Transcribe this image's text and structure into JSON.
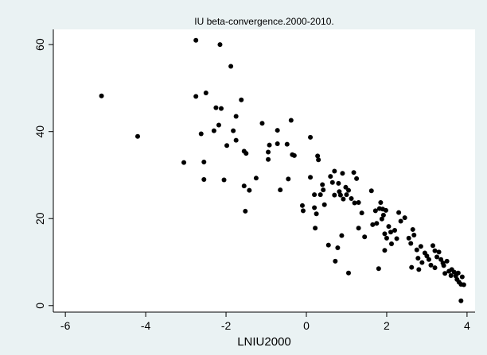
{
  "chart_data": {
    "type": "scatter",
    "title": "IU beta-convergence.2000-2010.",
    "xlabel": "LNIU2000",
    "ylabel": "",
    "xlim": [
      -6.3,
      4.2
    ],
    "ylim": [
      -1.5,
      63.5
    ],
    "xticks": [
      -6,
      -4,
      -2,
      0,
      2,
      4
    ],
    "xtick_labels": [
      "-6",
      "-4",
      "-2",
      "0",
      "2",
      "4"
    ],
    "yticks": [
      0,
      20,
      40,
      60
    ],
    "ytick_labels": [
      "0",
      "20",
      "40",
      "60"
    ],
    "grid": false,
    "legend": "none",
    "colors": {
      "background": "#eaf2f3",
      "plot_area": "#ffffff",
      "marker": "#000000"
    },
    "points": [
      {
        "x": -5.1,
        "y": 48.2
      },
      {
        "x": -4.2,
        "y": 38.9
      },
      {
        "x": -3.05,
        "y": 32.9
      },
      {
        "x": -2.75,
        "y": 61.0
      },
      {
        "x": -2.75,
        "y": 48.1
      },
      {
        "x": -2.62,
        "y": 39.5
      },
      {
        "x": -2.55,
        "y": 33.0
      },
      {
        "x": -2.55,
        "y": 29.0
      },
      {
        "x": -2.5,
        "y": 48.9
      },
      {
        "x": -2.3,
        "y": 40.2
      },
      {
        "x": -2.25,
        "y": 45.5
      },
      {
        "x": -2.18,
        "y": 41.5
      },
      {
        "x": -2.15,
        "y": 60.0
      },
      {
        "x": -2.12,
        "y": 45.3
      },
      {
        "x": -2.05,
        "y": 28.9
      },
      {
        "x": -1.98,
        "y": 36.8
      },
      {
        "x": -1.88,
        "y": 55.0
      },
      {
        "x": -1.82,
        "y": 40.2
      },
      {
        "x": -1.75,
        "y": 43.5
      },
      {
        "x": -1.75,
        "y": 38.0
      },
      {
        "x": -1.62,
        "y": 47.3
      },
      {
        "x": -1.55,
        "y": 35.5
      },
      {
        "x": -1.55,
        "y": 27.5
      },
      {
        "x": -1.52,
        "y": 21.7
      },
      {
        "x": -1.5,
        "y": 35.0
      },
      {
        "x": -1.42,
        "y": 26.5
      },
      {
        "x": -1.25,
        "y": 29.3
      },
      {
        "x": -1.1,
        "y": 41.9
      },
      {
        "x": -0.95,
        "y": 35.3
      },
      {
        "x": -0.95,
        "y": 33.6
      },
      {
        "x": -0.92,
        "y": 36.9
      },
      {
        "x": -0.72,
        "y": 40.3
      },
      {
        "x": -0.72,
        "y": 37.2
      },
      {
        "x": -0.65,
        "y": 26.6
      },
      {
        "x": -0.48,
        "y": 37.1
      },
      {
        "x": -0.45,
        "y": 29.1
      },
      {
        "x": -0.38,
        "y": 42.6
      },
      {
        "x": -0.35,
        "y": 34.7
      },
      {
        "x": -0.3,
        "y": 34.5
      },
      {
        "x": -0.1,
        "y": 23.0
      },
      {
        "x": -0.08,
        "y": 21.8
      },
      {
        "x": 0.1,
        "y": 38.7
      },
      {
        "x": 0.1,
        "y": 29.5
      },
      {
        "x": 0.2,
        "y": 25.5
      },
      {
        "x": 0.2,
        "y": 22.5
      },
      {
        "x": 0.22,
        "y": 17.8
      },
      {
        "x": 0.25,
        "y": 21.1
      },
      {
        "x": 0.28,
        "y": 34.4
      },
      {
        "x": 0.3,
        "y": 33.5
      },
      {
        "x": 0.35,
        "y": 25.5
      },
      {
        "x": 0.4,
        "y": 27.8
      },
      {
        "x": 0.42,
        "y": 26.6
      },
      {
        "x": 0.45,
        "y": 23.2
      },
      {
        "x": 0.55,
        "y": 13.9
      },
      {
        "x": 0.6,
        "y": 29.7
      },
      {
        "x": 0.65,
        "y": 28.3
      },
      {
        "x": 0.7,
        "y": 30.9
      },
      {
        "x": 0.7,
        "y": 25.4
      },
      {
        "x": 0.72,
        "y": 10.2
      },
      {
        "x": 0.78,
        "y": 13.3
      },
      {
        "x": 0.8,
        "y": 28.1
      },
      {
        "x": 0.82,
        "y": 26.2
      },
      {
        "x": 0.85,
        "y": 25.4
      },
      {
        "x": 0.88,
        "y": 16.1
      },
      {
        "x": 0.9,
        "y": 30.4
      },
      {
        "x": 0.92,
        "y": 24.5
      },
      {
        "x": 0.98,
        "y": 27.2
      },
      {
        "x": 1.0,
        "y": 25.5
      },
      {
        "x": 1.05,
        "y": 26.5
      },
      {
        "x": 1.05,
        "y": 7.5
      },
      {
        "x": 1.12,
        "y": 24.6
      },
      {
        "x": 1.18,
        "y": 30.6
      },
      {
        "x": 1.2,
        "y": 23.6
      },
      {
        "x": 1.25,
        "y": 29.2
      },
      {
        "x": 1.3,
        "y": 17.8
      },
      {
        "x": 1.3,
        "y": 23.7
      },
      {
        "x": 1.38,
        "y": 21.3
      },
      {
        "x": 1.45,
        "y": 15.8
      },
      {
        "x": 1.62,
        "y": 26.4
      },
      {
        "x": 1.65,
        "y": 18.6
      },
      {
        "x": 1.72,
        "y": 21.8
      },
      {
        "x": 1.75,
        "y": 18.9
      },
      {
        "x": 1.8,
        "y": 8.5
      },
      {
        "x": 1.82,
        "y": 22.3
      },
      {
        "x": 1.85,
        "y": 23.7
      },
      {
        "x": 1.88,
        "y": 19.9
      },
      {
        "x": 1.9,
        "y": 22.2
      },
      {
        "x": 1.92,
        "y": 20.8
      },
      {
        "x": 1.95,
        "y": 16.5
      },
      {
        "x": 1.95,
        "y": 12.7
      },
      {
        "x": 1.98,
        "y": 21.9
      },
      {
        "x": 2.0,
        "y": 15.5
      },
      {
        "x": 2.05,
        "y": 18.2
      },
      {
        "x": 2.1,
        "y": 16.9
      },
      {
        "x": 2.12,
        "y": 14.2
      },
      {
        "x": 2.2,
        "y": 17.3
      },
      {
        "x": 2.25,
        "y": 15.4
      },
      {
        "x": 2.3,
        "y": 21.4
      },
      {
        "x": 2.35,
        "y": 19.4
      },
      {
        "x": 2.45,
        "y": 20.2
      },
      {
        "x": 2.55,
        "y": 15.5
      },
      {
        "x": 2.6,
        "y": 14.3
      },
      {
        "x": 2.62,
        "y": 8.8
      },
      {
        "x": 2.65,
        "y": 17.5
      },
      {
        "x": 2.68,
        "y": 16.2
      },
      {
        "x": 2.75,
        "y": 12.8
      },
      {
        "x": 2.78,
        "y": 10.9
      },
      {
        "x": 2.8,
        "y": 8.3
      },
      {
        "x": 2.85,
        "y": 13.6
      },
      {
        "x": 2.88,
        "y": 9.9
      },
      {
        "x": 2.95,
        "y": 12.1
      },
      {
        "x": 3.0,
        "y": 11.4
      },
      {
        "x": 3.05,
        "y": 10.6
      },
      {
        "x": 3.1,
        "y": 9.3
      },
      {
        "x": 3.15,
        "y": 13.8
      },
      {
        "x": 3.2,
        "y": 12.6
      },
      {
        "x": 3.2,
        "y": 8.7
      },
      {
        "x": 3.25,
        "y": 11.2
      },
      {
        "x": 3.3,
        "y": 12.3
      },
      {
        "x": 3.35,
        "y": 10.6
      },
      {
        "x": 3.4,
        "y": 9.8
      },
      {
        "x": 3.42,
        "y": 9.2
      },
      {
        "x": 3.45,
        "y": 7.4
      },
      {
        "x": 3.5,
        "y": 10.2
      },
      {
        "x": 3.55,
        "y": 7.9
      },
      {
        "x": 3.6,
        "y": 6.9
      },
      {
        "x": 3.62,
        "y": 8.3
      },
      {
        "x": 3.68,
        "y": 7.7
      },
      {
        "x": 3.72,
        "y": 6.8
      },
      {
        "x": 3.75,
        "y": 6.0
      },
      {
        "x": 3.78,
        "y": 7.5
      },
      {
        "x": 3.8,
        "y": 5.4
      },
      {
        "x": 3.85,
        "y": 4.9
      },
      {
        "x": 3.88,
        "y": 6.6
      },
      {
        "x": 3.92,
        "y": 4.8
      },
      {
        "x": 3.85,
        "y": 1.1
      }
    ]
  }
}
